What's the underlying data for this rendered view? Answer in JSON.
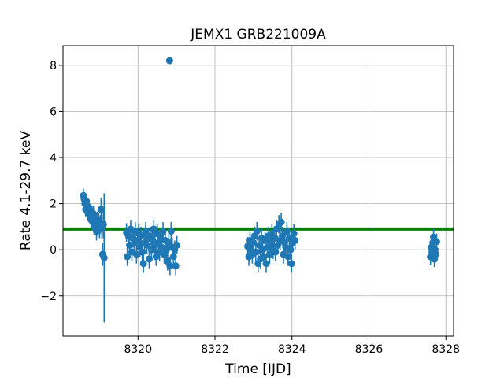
{
  "chart_data": {
    "type": "scatter",
    "title": "JEMX1 GRB221009A",
    "xlabel": "Time [IJD]",
    "ylabel": "Rate 4.1-29.7 keV",
    "xlim": [
      8318.05,
      8328.2
    ],
    "ylim": [
      -3.75,
      8.85
    ],
    "xticks": [
      8320,
      8322,
      8324,
      8326,
      8328
    ],
    "xtick_labels": [
      "8320",
      "8322",
      "8324",
      "8326",
      "8328"
    ],
    "yticks": [
      -2,
      0,
      2,
      4,
      6,
      8
    ],
    "ytick_labels": [
      "−2",
      "0",
      "2",
      "4",
      "6",
      "8"
    ],
    "grid": true,
    "colors": {
      "points": "#1f77b4",
      "hline": "#008000",
      "grid": "#b0b0b0"
    },
    "hline": {
      "y": 0.9
    },
    "series": [
      {
        "points": [
          [
            8318.58,
            2.35,
            0.3
          ],
          [
            8318.6,
            2.2,
            0.3
          ],
          [
            8318.62,
            2.0,
            0.3
          ],
          [
            8318.64,
            1.75,
            0.3
          ],
          [
            8318.66,
            2.1,
            0.3
          ],
          [
            8318.68,
            1.9,
            0.3
          ],
          [
            8318.7,
            1.6,
            0.3
          ],
          [
            8318.72,
            1.85,
            0.3
          ],
          [
            8318.74,
            1.5,
            0.3
          ],
          [
            8318.76,
            1.7,
            0.3
          ],
          [
            8318.78,
            1.3,
            0.3
          ],
          [
            8318.8,
            1.6,
            0.3
          ],
          [
            8318.82,
            1.2,
            0.35
          ],
          [
            8318.84,
            1.55,
            0.35
          ],
          [
            8318.86,
            1.0,
            0.35
          ],
          [
            8318.88,
            1.35,
            0.35
          ],
          [
            8318.9,
            1.1,
            0.35
          ],
          [
            8318.92,
            0.8,
            0.4
          ],
          [
            8318.94,
            1.3,
            0.35
          ],
          [
            8318.96,
            1.0,
            0.4
          ],
          [
            8318.98,
            1.2,
            0.4
          ],
          [
            8319.0,
            0.9,
            0.4
          ],
          [
            8319.02,
            1.1,
            0.4
          ],
          [
            8319.04,
            1.75,
            0.5
          ],
          [
            8319.06,
            1.0,
            0.5
          ],
          [
            8319.08,
            -0.2,
            0.5
          ],
          [
            8319.1,
            1.1,
            0.6
          ],
          [
            8319.12,
            -0.35,
            2.8
          ],
          [
            8319.7,
            0.75,
            0.4
          ],
          [
            8319.72,
            -0.3,
            0.4
          ],
          [
            8319.75,
            0.6,
            0.4
          ],
          [
            8319.78,
            0.2,
            0.4
          ],
          [
            8319.81,
            0.9,
            0.4
          ],
          [
            8319.84,
            -0.1,
            0.4
          ],
          [
            8319.87,
            0.5,
            0.4
          ],
          [
            8319.9,
            0.3,
            0.4
          ],
          [
            8319.93,
            0.8,
            0.4
          ],
          [
            8319.96,
            -0.2,
            0.4
          ],
          [
            8319.99,
            0.4,
            0.4
          ],
          [
            8320.02,
            0.7,
            0.4
          ],
          [
            8320.05,
            0.1,
            0.4
          ],
          [
            8320.08,
            0.6,
            0.4
          ],
          [
            8320.11,
            -0.1,
            0.4
          ],
          [
            8320.14,
            -0.6,
            0.4
          ],
          [
            8320.17,
            0.3,
            0.4
          ],
          [
            8320.2,
            0.8,
            0.4
          ],
          [
            8320.23,
            0.2,
            0.4
          ],
          [
            8320.26,
            0.5,
            0.4
          ],
          [
            8320.29,
            -0.4,
            0.4
          ],
          [
            8320.32,
            0.6,
            0.4
          ],
          [
            8320.35,
            0.0,
            0.4
          ],
          [
            8320.38,
            0.4,
            0.4
          ],
          [
            8320.41,
            0.9,
            0.4
          ],
          [
            8320.44,
            0.2,
            0.4
          ],
          [
            8320.47,
            -0.3,
            0.4
          ],
          [
            8320.5,
            0.7,
            0.4
          ],
          [
            8320.53,
            0.3,
            0.4
          ],
          [
            8320.56,
            -0.1,
            0.4
          ],
          [
            8320.59,
            0.5,
            0.4
          ],
          [
            8320.62,
            0.1,
            0.4
          ],
          [
            8320.65,
            0.8,
            0.4
          ],
          [
            8320.68,
            -0.2,
            0.4
          ],
          [
            8320.71,
            0.4,
            0.4
          ],
          [
            8320.74,
            0.0,
            0.4
          ],
          [
            8320.77,
            -0.5,
            0.4
          ],
          [
            8320.8,
            0.3,
            0.4
          ],
          [
            8320.83,
            -0.7,
            0.4
          ],
          [
            8320.86,
            0.8,
            0.4
          ],
          [
            8320.89,
            0.1,
            0.4
          ],
          [
            8320.92,
            -0.3,
            0.4
          ],
          [
            8320.95,
            0.0,
            0.4
          ],
          [
            8320.98,
            -0.7,
            0.4
          ],
          [
            8321.01,
            0.2,
            0.4
          ],
          [
            8320.82,
            8.2,
            0.05
          ],
          [
            8322.85,
            0.15,
            0.4
          ],
          [
            8322.88,
            -0.3,
            0.4
          ],
          [
            8322.91,
            0.4,
            0.4
          ],
          [
            8322.94,
            0.0,
            0.4
          ],
          [
            8322.97,
            -0.2,
            0.4
          ],
          [
            8323.0,
            0.3,
            0.4
          ],
          [
            8323.03,
            0.6,
            0.4
          ],
          [
            8323.06,
            -0.1,
            0.4
          ],
          [
            8323.09,
            0.8,
            0.4
          ],
          [
            8323.12,
            -0.6,
            0.4
          ],
          [
            8323.15,
            0.2,
            0.4
          ],
          [
            8323.18,
            -0.4,
            0.4
          ],
          [
            8323.21,
            0.5,
            0.4
          ],
          [
            8323.24,
            0.0,
            0.4
          ],
          [
            8323.27,
            -0.3,
            0.4
          ],
          [
            8323.3,
            0.4,
            0.4
          ],
          [
            8323.33,
            -0.6,
            0.4
          ],
          [
            8323.36,
            0.1,
            0.4
          ],
          [
            8323.39,
            0.6,
            0.4
          ],
          [
            8323.42,
            -0.2,
            0.4
          ],
          [
            8323.45,
            0.3,
            0.4
          ],
          [
            8323.48,
            0.7,
            0.4
          ],
          [
            8323.51,
            0.0,
            0.4
          ],
          [
            8323.54,
            0.5,
            0.4
          ],
          [
            8323.57,
            -0.1,
            0.4
          ],
          [
            8323.6,
            0.9,
            0.4
          ],
          [
            8323.63,
            0.2,
            0.4
          ],
          [
            8323.66,
            1.1,
            0.4
          ],
          [
            8323.69,
            0.4,
            0.4
          ],
          [
            8323.72,
            1.2,
            0.4
          ],
          [
            8323.75,
            0.6,
            0.4
          ],
          [
            8323.78,
            -0.2,
            0.4
          ],
          [
            8323.81,
            0.3,
            0.4
          ],
          [
            8323.84,
            0.1,
            0.4
          ],
          [
            8323.87,
            0.8,
            0.4
          ],
          [
            8323.9,
            -0.3,
            0.4
          ],
          [
            8323.93,
            0.5,
            0.4
          ],
          [
            8323.96,
            0.0,
            0.4
          ],
          [
            8323.99,
            -0.6,
            0.4
          ],
          [
            8324.02,
            0.3,
            0.4
          ],
          [
            8324.05,
            0.7,
            0.4
          ],
          [
            8324.08,
            0.4,
            0.4
          ],
          [
            8327.6,
            -0.3,
            0.35
          ],
          [
            8327.62,
            0.1,
            0.35
          ],
          [
            8327.64,
            -0.1,
            0.35
          ],
          [
            8327.66,
            0.3,
            0.35
          ],
          [
            8327.68,
            0.55,
            0.35
          ],
          [
            8327.7,
            -0.4,
            0.35
          ],
          [
            8327.72,
            0.0,
            0.35
          ],
          [
            8327.74,
            -0.2,
            0.35
          ],
          [
            8327.76,
            0.35,
            0.35
          ]
        ]
      }
    ]
  }
}
